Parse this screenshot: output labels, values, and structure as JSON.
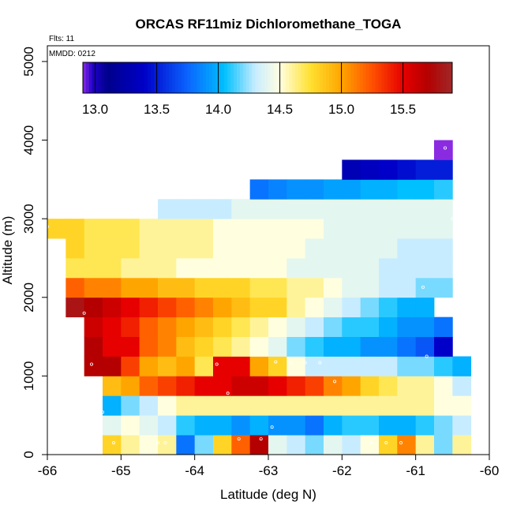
{
  "chart_data": {
    "type": "heatmap",
    "title": "ORCAS RF11miz Dichloromethane_TOGA",
    "flights_label": "Flts: 11",
    "date_label": "MMDD: 0212",
    "xlabel": "Latitude (deg N)",
    "ylabel": "Altitude (m)",
    "xlim": [
      -66,
      -60
    ],
    "ylim": [
      0,
      5200
    ],
    "x_ticks": [
      -66,
      -65,
      -64,
      -63,
      -62,
      -61,
      -60
    ],
    "y_ticks": [
      0,
      1000,
      2000,
      3000,
      4000,
      5000
    ],
    "colorbar": {
      "range": [
        12.9,
        15.9
      ],
      "ticks": [
        13.0,
        13.5,
        14.0,
        14.5,
        15.0,
        15.5
      ],
      "stops": [
        [
          12.9,
          "#8a2be2"
        ],
        [
          12.98,
          "#1e00c8"
        ],
        [
          13.1,
          "#00008c"
        ],
        [
          13.4,
          "#0000c8"
        ],
        [
          13.75,
          "#0a64ff"
        ],
        [
          14.05,
          "#00c0ff"
        ],
        [
          14.3,
          "#c8ecff"
        ],
        [
          14.5,
          "#ffffe0"
        ],
        [
          14.75,
          "#ffe030"
        ],
        [
          15.0,
          "#ffa500"
        ],
        [
          15.25,
          "#ff5000"
        ],
        [
          15.5,
          "#e60000"
        ],
        [
          15.7,
          "#b40000"
        ],
        [
          15.9,
          "#a02828"
        ]
      ]
    },
    "cell_height_m": 250,
    "cell_width_deg": 0.25,
    "rows": [
      {
        "alt": 125,
        "x0": -65.25,
        "values": [
          14.8,
          14.6,
          14.5,
          14.6,
          13.8,
          14.2,
          14.8,
          15.2,
          15.7,
          14.4,
          14.3,
          14.2,
          14.4,
          14.3,
          14.5,
          14.8,
          15.1,
          14.6,
          14.2,
          14.6
        ]
      },
      {
        "alt": 375,
        "x0": -65.25,
        "values": [
          14.4,
          14.5,
          14.4,
          14.3,
          14.1,
          14.0,
          14.0,
          13.9,
          14.0,
          13.9,
          13.9,
          13.8,
          14.0,
          14.1,
          14.1,
          14.0,
          14.0,
          14.1,
          14.2,
          14.3
        ]
      },
      {
        "alt": 625,
        "x0": -65.25,
        "values": [
          14.0,
          14.2,
          14.3,
          14.5,
          14.6,
          14.6,
          14.6,
          14.6,
          14.6,
          14.6,
          14.6,
          14.6,
          14.6,
          14.6,
          14.6,
          14.6,
          14.6,
          14.6,
          14.5,
          14.5
        ]
      },
      {
        "alt": 875,
        "x0": -65.25,
        "values": [
          14.9,
          15.0,
          15.2,
          15.3,
          15.4,
          15.5,
          15.5,
          15.6,
          15.6,
          15.5,
          15.4,
          15.3,
          15.1,
          15.0,
          14.8,
          14.7,
          14.6,
          14.6,
          14.5,
          14.3
        ]
      },
      {
        "alt": 1125,
        "x0": -65.5,
        "values": [
          15.7,
          15.7,
          15.3,
          15.0,
          14.9,
          15.0,
          14.7,
          15.5,
          15.5,
          15.0,
          14.8,
          14.5,
          14.3,
          14.3,
          14.3,
          14.3,
          14.3,
          14.2,
          14.2,
          14.1,
          14.0
        ]
      },
      {
        "alt": 1375,
        "x0": -65.5,
        "values": [
          15.7,
          15.5,
          15.5,
          15.2,
          15.1,
          14.9,
          14.8,
          14.7,
          14.6,
          14.5,
          14.4,
          14.2,
          14.1,
          14.0,
          14.0,
          13.9,
          13.9,
          13.8,
          13.7,
          13.4
        ]
      },
      {
        "alt": 1625,
        "x0": -65.5,
        "values": [
          15.6,
          15.5,
          15.4,
          15.2,
          15.1,
          15.0,
          14.9,
          14.8,
          14.7,
          14.6,
          14.5,
          14.4,
          14.3,
          14.2,
          14.1,
          14.1,
          14.0,
          13.9,
          13.9,
          13.8
        ]
      },
      {
        "alt": 1875,
        "x0": -65.75,
        "values": [
          15.8,
          15.7,
          15.6,
          15.5,
          15.4,
          15.3,
          15.2,
          15.1,
          15.0,
          14.9,
          14.8,
          14.8,
          14.6,
          14.5,
          14.4,
          14.3,
          14.2,
          14.1,
          14.0,
          14.0
        ]
      },
      {
        "alt": 2125,
        "x0": -65.75,
        "values": [
          15.2,
          15.1,
          15.1,
          15.0,
          15.0,
          14.9,
          14.9,
          14.8,
          14.8,
          14.8,
          14.7,
          14.7,
          14.6,
          14.6,
          14.5,
          14.4,
          14.4,
          14.3,
          14.3,
          14.2,
          14.2
        ]
      },
      {
        "alt": 2375,
        "x0": -65.75,
        "values": [
          14.7,
          14.7,
          14.7,
          14.6,
          14.6,
          14.6,
          14.5,
          14.5,
          14.5,
          14.5,
          14.5,
          14.5,
          14.4,
          14.4,
          14.4,
          14.4,
          14.4,
          14.3,
          14.3,
          14.3,
          14.3
        ]
      },
      {
        "alt": 2625,
        "x0": -65.75,
        "values": [
          14.8,
          14.7,
          14.7,
          14.7,
          14.6,
          14.6,
          14.6,
          14.6,
          14.5,
          14.5,
          14.5,
          14.5,
          14.5,
          14.4,
          14.4,
          14.4,
          14.4,
          14.4,
          14.3,
          14.3,
          14.3
        ]
      },
      {
        "alt": 2875,
        "x0": -66.0,
        "values": [
          14.8,
          14.8,
          14.7,
          14.7,
          14.7,
          14.6,
          14.6,
          14.6,
          14.6,
          14.5,
          14.5,
          14.5,
          14.5,
          14.5,
          14.5,
          14.4,
          14.4,
          14.4,
          14.4,
          14.4,
          14.4,
          14.4
        ]
      },
      {
        "alt": 3125,
        "x0": -64.5,
        "values": [
          14.3,
          14.3,
          14.3,
          14.3,
          14.4,
          14.4,
          14.4,
          14.4,
          14.4,
          14.4,
          14.4,
          14.4,
          14.4,
          14.4,
          14.4,
          14.4
        ]
      },
      {
        "alt": 3375,
        "x0": -63.25,
        "values": [
          13.8,
          13.85,
          13.9,
          13.9,
          13.95,
          13.95,
          14.0,
          14.0,
          14.05,
          14.05,
          14.1
        ]
      },
      {
        "alt": 3625,
        "x0": -62.0,
        "values": [
          13.3,
          13.35,
          13.4,
          13.45,
          13.5,
          13.5
        ]
      },
      {
        "alt": 3875,
        "x0": -60.75,
        "values": [
          12.9
        ]
      }
    ],
    "sample_points": [
      [
        -65.5,
        1800
      ],
      [
        -65.4,
        1150
      ],
      [
        -65.25,
        540
      ],
      [
        -65.1,
        150
      ],
      [
        -64.5,
        150
      ],
      [
        -64.4,
        150
      ],
      [
        -63.7,
        1150
      ],
      [
        -63.55,
        780
      ],
      [
        -63.4,
        200
      ],
      [
        -63.1,
        200
      ],
      [
        -62.95,
        350
      ],
      [
        -62.9,
        1180
      ],
      [
        -62.7,
        1170
      ],
      [
        -62.5,
        1170
      ],
      [
        -62.3,
        1170
      ],
      [
        -62.1,
        930
      ],
      [
        -61.6,
        150
      ],
      [
        -61.4,
        150
      ],
      [
        -61.2,
        150
      ],
      [
        -60.85,
        1250
      ],
      [
        -60.9,
        2130
      ],
      [
        -60.6,
        3900
      ],
      [
        -60.5,
        3000
      ],
      [
        -66.0,
        2900
      ]
    ]
  }
}
